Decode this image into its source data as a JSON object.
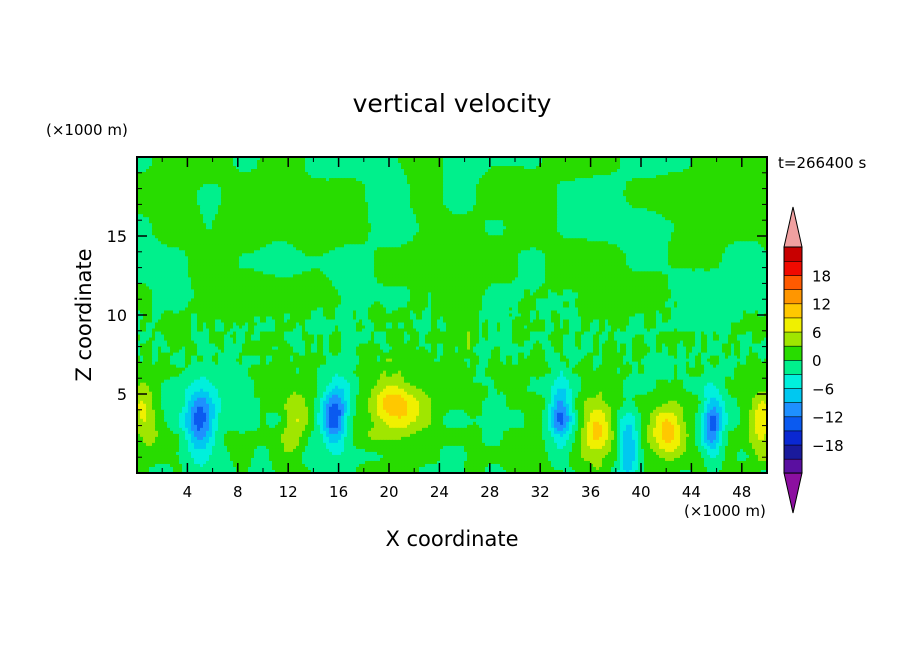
{
  "chart_data": {
    "type": "heatmap",
    "title": "vertical velocity",
    "xlabel": "X coordinate",
    "ylabel": "Z coordinate",
    "x_unit": "(×1000 m)",
    "y_unit": "(×1000 m)",
    "time_label": "t=266400 s",
    "xlim": [
      0,
      50
    ],
    "ylim": [
      0,
      20
    ],
    "x_ticks": [
      4,
      8,
      12,
      16,
      20,
      24,
      28,
      32,
      36,
      40,
      44,
      48
    ],
    "y_ticks": [
      5,
      10,
      15
    ],
    "colorbar": {
      "levels": [
        -21,
        -18,
        -15,
        -12,
        -9,
        -6,
        -3,
        0,
        3,
        6,
        9,
        12,
        15,
        18,
        21
      ],
      "labels": [
        -18,
        -12,
        -6,
        0,
        6,
        12,
        18
      ],
      "colors": [
        "#5a0fa0",
        "#1a1a9c",
        "#0a28d2",
        "#0a5af0",
        "#1e90ff",
        "#00c8f0",
        "#00f0dc",
        "#00f08c",
        "#28dc00",
        "#a0e600",
        "#f0f000",
        "#ffc800",
        "#ff9600",
        "#ff5a00",
        "#f00a00",
        "#c80000"
      ],
      "over_color": "#f0a0a0",
      "under_color": "#8c0fa0"
    },
    "features": [
      {
        "x": 0.5,
        "z": 3.6,
        "w": 1.1,
        "amp": 7
      },
      {
        "x": 5.0,
        "z": 3.4,
        "w": 1.2,
        "amp": -12
      },
      {
        "x": 12.5,
        "z": 3.2,
        "w": 1.0,
        "amp": 6
      },
      {
        "x": 15.7,
        "z": 3.6,
        "w": 1.0,
        "amp": -14
      },
      {
        "x": 20.7,
        "z": 4.0,
        "w": 2.4,
        "amp": 11
      },
      {
        "x": 33.6,
        "z": 3.8,
        "w": 0.9,
        "amp": -12
      },
      {
        "x": 36.5,
        "z": 2.6,
        "w": 1.2,
        "amp": 10
      },
      {
        "x": 39.0,
        "z": 1.6,
        "w": 0.8,
        "amp": -10
      },
      {
        "x": 42.3,
        "z": 2.6,
        "w": 1.5,
        "amp": 10
      },
      {
        "x": 45.7,
        "z": 3.1,
        "w": 0.8,
        "amp": -12
      },
      {
        "x": 49.6,
        "z": 3.0,
        "w": 1.0,
        "amp": 8
      }
    ]
  }
}
